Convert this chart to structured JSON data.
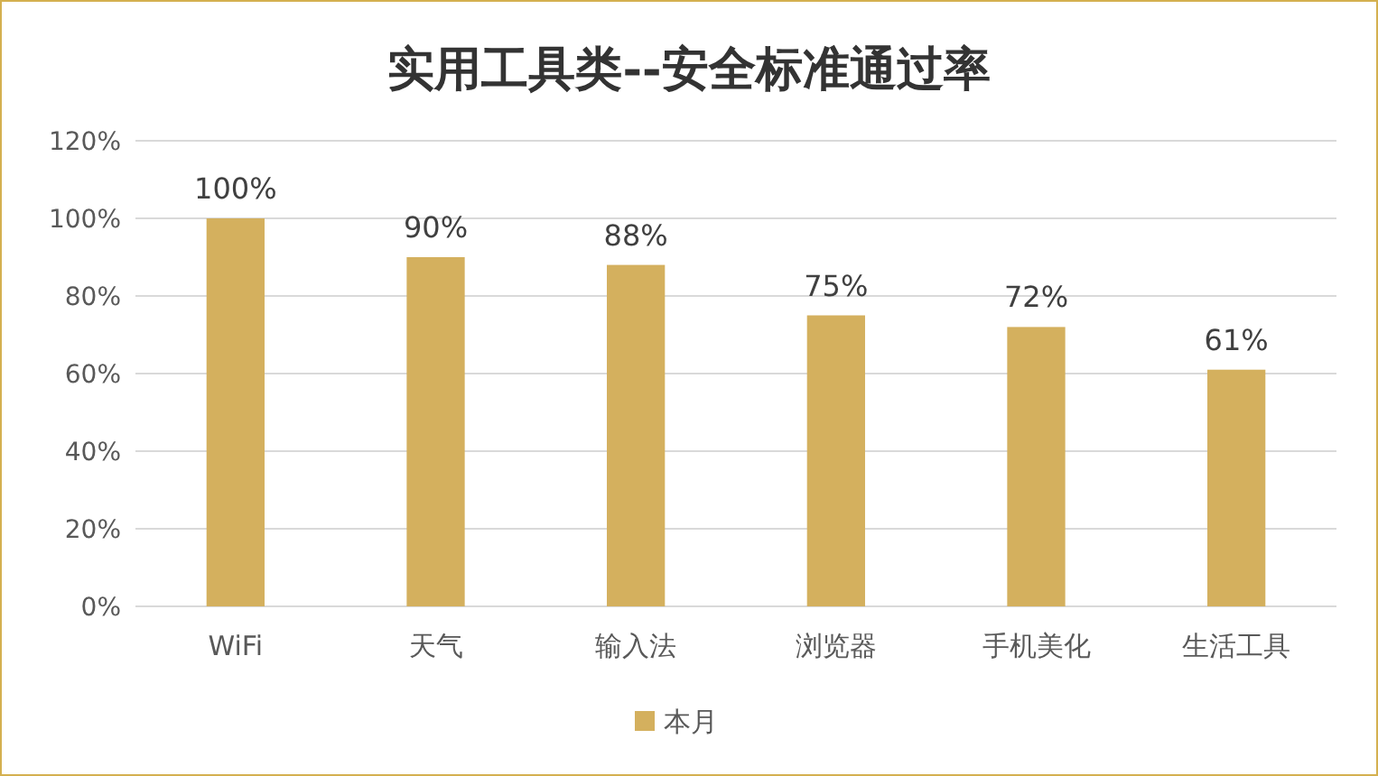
{
  "chart_data": {
    "type": "bar",
    "title": "实用工具类--安全标准通过率",
    "categories": [
      "WiFi",
      "天气",
      "输入法",
      "浏览器",
      "手机美化",
      "生活工具"
    ],
    "series": [
      {
        "name": "本月",
        "color": "#d4b05e",
        "values": [
          100,
          90,
          88,
          75,
          72,
          61
        ],
        "value_labels": [
          "100%",
          "90%",
          "88%",
          "75%",
          "72%",
          "61%"
        ]
      }
    ],
    "ylim": [
      0,
      120
    ],
    "yticks": [
      {
        "value": 0,
        "label": "0%"
      },
      {
        "value": 20,
        "label": "20%"
      },
      {
        "value": 40,
        "label": "40%"
      },
      {
        "value": 60,
        "label": "60%"
      },
      {
        "value": 80,
        "label": "80%"
      },
      {
        "value": 100,
        "label": "100%"
      },
      {
        "value": 120,
        "label": "120%"
      }
    ],
    "grid": "y",
    "legend": "bottom"
  }
}
